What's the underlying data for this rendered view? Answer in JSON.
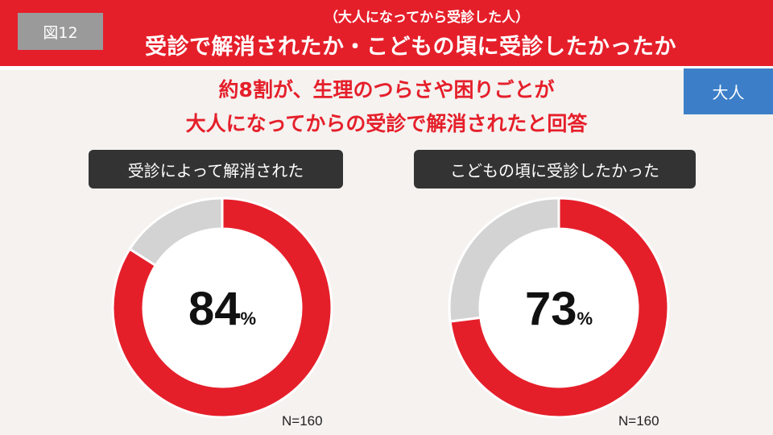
{
  "header": {
    "figure_tag": "図12",
    "subtitle": "（大人になってから受診した人）",
    "title": "受診で解消されたか・こどもの頃に受診したかったか"
  },
  "headline": {
    "line1": "約8割が、生理のつらさや困りごとが",
    "line2": "大人になってからの受診で解消されたと回答"
  },
  "badge": "大人",
  "colors": {
    "accent_red": "#e51f2a",
    "rest_gray": "#d3d3d3",
    "badge_blue": "#3c7fc8",
    "pill_dark": "#333333"
  },
  "chart_data": [
    {
      "type": "pie",
      "title": "受診によって解消された",
      "values": [
        84,
        16
      ],
      "value_label": "84",
      "unit": "%",
      "n": "N=160"
    },
    {
      "type": "pie",
      "title": "こどもの頃に受診したかった",
      "values": [
        73,
        27
      ],
      "value_label": "73",
      "unit": "%",
      "n": "N=160"
    }
  ]
}
